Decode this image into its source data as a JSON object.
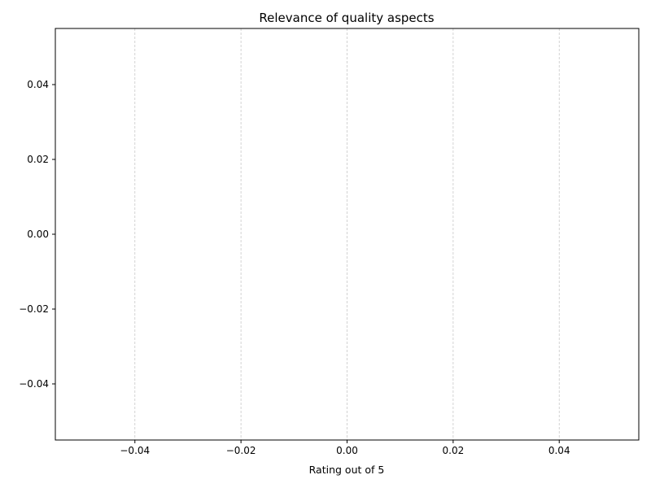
{
  "chart_data": {
    "type": "bar",
    "orientation": "horizontal",
    "title": "Relevance of quality aspects",
    "xlabel": "Rating out of 5",
    "ylabel": "",
    "categories": [],
    "values": [],
    "xlim": [
      -0.055,
      0.055
    ],
    "ylim": [
      -0.055,
      0.055
    ],
    "x_ticks": [
      -0.04,
      -0.02,
      0.0,
      0.02,
      0.04
    ],
    "x_tick_labels": [
      "−0.04",
      "−0.02",
      "0.00",
      "0.02",
      "0.04"
    ],
    "y_ticks": [
      -0.04,
      -0.02,
      0.0,
      0.02,
      0.04
    ],
    "y_tick_labels": [
      "−0.04",
      "−0.02",
      "0.00",
      "0.02",
      "0.04"
    ],
    "grid": {
      "x": true,
      "y": false,
      "style": "dashed",
      "color": "#c8c8c8"
    },
    "legend": "none",
    "colors": {
      "axes": "#000000",
      "background": "#ffffff",
      "grid": "#c8c8c8"
    }
  }
}
